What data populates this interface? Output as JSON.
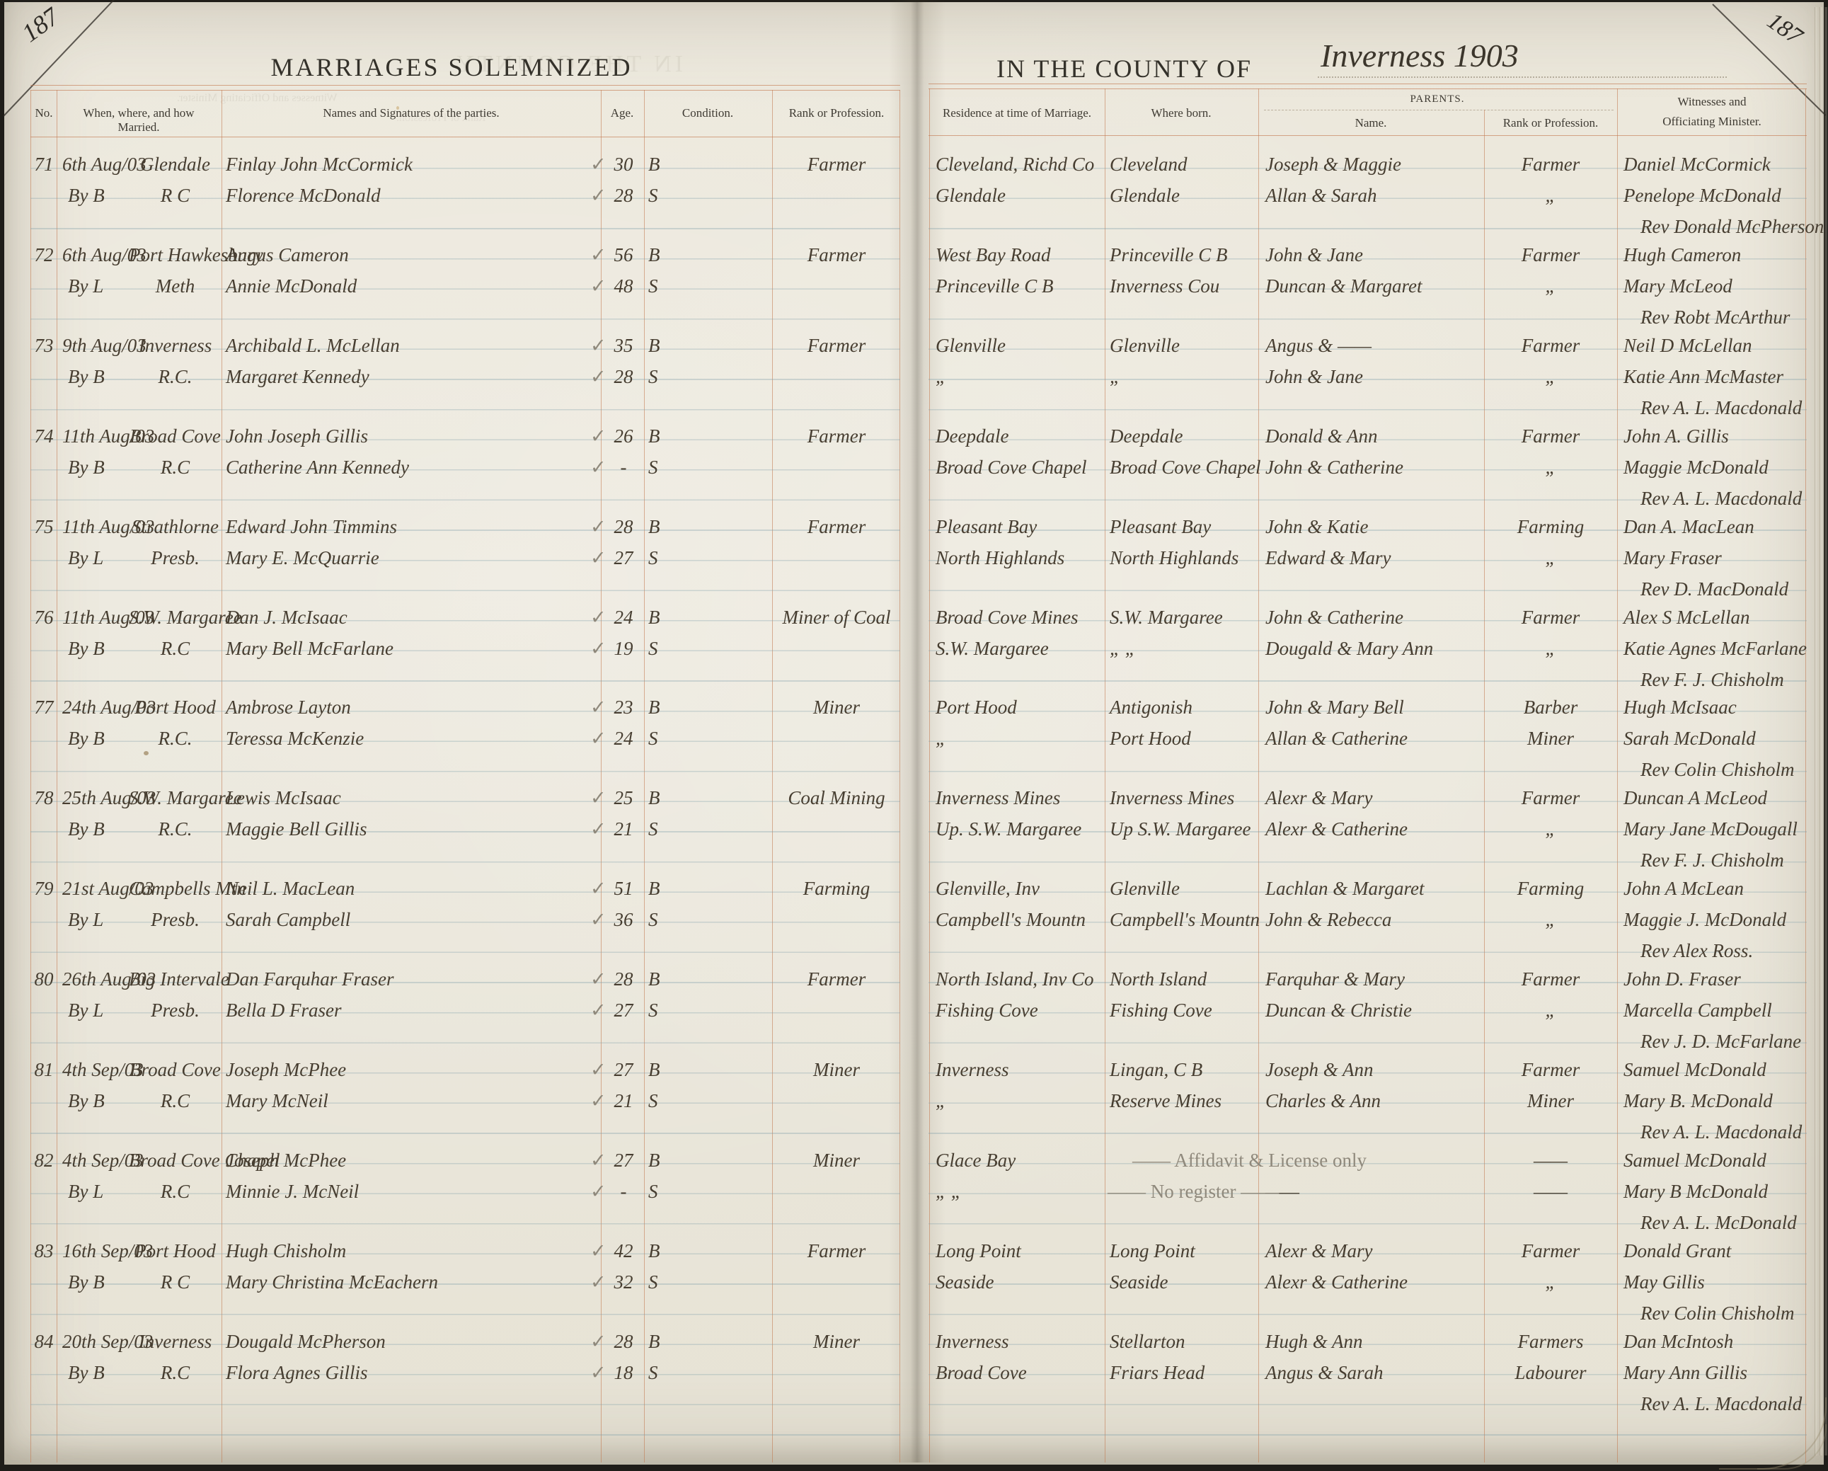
{
  "page": {
    "corner_number_left": "187",
    "corner_number_right": "187",
    "title_left": "MARRIAGES SOLEMNIZED",
    "title_right": "IN THE COUNTY OF",
    "county_handwritten": "Inverness 1903"
  },
  "glyphs": {
    "check": "✓"
  },
  "ghosts": {
    "ghost1": "IN THE COUNTY",
    "ghost2": "Witnesses and Officiating Minister.",
    "ghost3": "Rank or Profession."
  },
  "headers": {
    "no": "No.",
    "when": "When, where, and how Married.",
    "names": "Names and Signatures of the parties.",
    "age": "Age.",
    "condition": "Condition.",
    "rank": "Rank or Profession.",
    "residence": "Residence at time of Marriage.",
    "born": "Where born.",
    "parents": "PARENTS.",
    "parents_name": "Name.",
    "parents_rank": "Rank or Profession.",
    "witnesses_line1": "Witnesses and",
    "witnesses_line2": "Officiating Minister."
  },
  "entries": [
    {
      "no": "71",
      "date": "6th Aug/03",
      "by": "By B",
      "place": "Glendale",
      "denomination": "R C",
      "groom": {
        "name": "Finlay John McCormick",
        "age": "30",
        "condition": "B",
        "profession": "Farmer",
        "residence": "Cleveland, Richd Co",
        "born": "Cleveland",
        "parents": "Joseph & Maggie",
        "parents_profession": "Farmer"
      },
      "bride": {
        "name": "Florence McDonald",
        "age": "28",
        "condition": "S",
        "profession": "",
        "residence": "Glendale",
        "born": "Glendale",
        "parents": "Allan & Sarah",
        "parents_profession": "„"
      },
      "witness1": "Daniel McCormick",
      "witness2": "Penelope McDonald",
      "minister": "Rev Donald McPherson"
    },
    {
      "no": "72",
      "date": "6th Aug/03",
      "by": "By L",
      "place": "Port Hawkesbury",
      "denomination": "Meth",
      "groom": {
        "name": "Angus Cameron",
        "age": "56",
        "condition": "B",
        "profession": "Farmer",
        "residence": "West Bay Road",
        "born": "Princeville C B",
        "parents": "John & Jane",
        "parents_profession": "Farmer"
      },
      "bride": {
        "name": "Annie McDonald",
        "age": "48",
        "condition": "S",
        "profession": "",
        "residence": "Princeville C B",
        "born": "Inverness Cou",
        "parents": "Duncan & Margaret",
        "parents_profession": "„"
      },
      "witness1": "Hugh Cameron",
      "witness2": "Mary McLeod",
      "minister": "Rev Robt McArthur"
    },
    {
      "no": "73",
      "date": "9th Aug/03",
      "by": "By B",
      "place": "Inverness",
      "denomination": "R.C.",
      "groom": {
        "name": "Archibald L. McLellan",
        "age": "35",
        "condition": "B",
        "profession": "Farmer",
        "residence": "Glenville",
        "born": "Glenville",
        "parents": "Angus & ——",
        "parents_profession": "Farmer"
      },
      "bride": {
        "name": "Margaret Kennedy",
        "age": "28",
        "condition": "S",
        "profession": "",
        "residence": "„",
        "born": "„",
        "parents": "John & Jane",
        "parents_profession": "„"
      },
      "witness1": "Neil D McLellan",
      "witness2": "Katie Ann McMaster",
      "minister": "Rev A. L. Macdonald"
    },
    {
      "no": "74",
      "date": "11th Aug/03",
      "by": "By B",
      "place": "Broad Cove",
      "denomination": "R.C",
      "groom": {
        "name": "John Joseph Gillis",
        "age": "26",
        "condition": "B",
        "profession": "Farmer",
        "residence": "Deepdale",
        "born": "Deepdale",
        "parents": "Donald & Ann",
        "parents_profession": "Farmer"
      },
      "bride": {
        "name": "Catherine Ann Kennedy",
        "age": "-",
        "condition": "S",
        "profession": "",
        "residence": "Broad Cove Chapel",
        "born": "Broad Cove Chapel",
        "parents": "John & Catherine",
        "parents_profession": "„"
      },
      "witness1": "John A. Gillis",
      "witness2": "Maggie McDonald",
      "minister": "Rev A. L. Macdonald"
    },
    {
      "no": "75",
      "date": "11th Aug/03",
      "by": "By L",
      "place": "Strathlorne",
      "denomination": "Presb.",
      "groom": {
        "name": "Edward John Timmins",
        "age": "28",
        "condition": "B",
        "profession": "Farmer",
        "residence": "Pleasant Bay",
        "born": "Pleasant Bay",
        "parents": "John & Katie",
        "parents_profession": "Farming"
      },
      "bride": {
        "name": "Mary E. McQuarrie",
        "age": "27",
        "condition": "S",
        "profession": "",
        "residence": "North Highlands",
        "born": "North Highlands",
        "parents": "Edward & Mary",
        "parents_profession": "„"
      },
      "witness1": "Dan A. MacLean",
      "witness2": "Mary Fraser",
      "minister": "Rev D. MacDonald"
    },
    {
      "no": "76",
      "date": "11th Aug/03",
      "by": "By B",
      "place": "S.W. Margaree",
      "denomination": "R.C",
      "groom": {
        "name": "Dan J. McIsaac",
        "age": "24",
        "condition": "B",
        "profession": "Miner of Coal",
        "residence": "Broad Cove Mines",
        "born": "S.W. Margaree",
        "parents": "John & Catherine",
        "parents_profession": "Farmer"
      },
      "bride": {
        "name": "Mary Bell McFarlane",
        "age": "19",
        "condition": "S",
        "profession": "",
        "residence": "S.W. Margaree",
        "born": "„ „",
        "parents": "Dougald & Mary Ann",
        "parents_profession": "„"
      },
      "witness1": "Alex S McLellan",
      "witness2": "Katie Agnes McFarlane",
      "minister": "Rev F. J. Chisholm"
    },
    {
      "no": "77",
      "date": "24th Aug/03",
      "by": "By B",
      "place": "Port Hood",
      "denomination": "R.C.",
      "groom": {
        "name": "Ambrose Layton",
        "age": "23",
        "condition": "B",
        "profession": "Miner",
        "residence": "Port Hood",
        "born": "Antigonish",
        "parents": "John & Mary Bell",
        "parents_profession": "Barber"
      },
      "bride": {
        "name": "Teressa McKenzie",
        "age": "24",
        "condition": "S",
        "profession": "",
        "residence": "„",
        "born": "Port Hood",
        "parents": "Allan & Catherine",
        "parents_profession": "Miner"
      },
      "witness1": "Hugh McIsaac",
      "witness2": "Sarah McDonald",
      "minister": "Rev Colin Chisholm"
    },
    {
      "no": "78",
      "date": "25th Aug/03",
      "by": "By B",
      "place": "S.W. Margaree",
      "denomination": "R.C.",
      "groom": {
        "name": "Lewis McIsaac",
        "age": "25",
        "condition": "B",
        "profession": "Coal Mining",
        "residence": "Inverness Mines",
        "born": "Inverness Mines",
        "parents": "Alexr & Mary",
        "parents_profession": "Farmer"
      },
      "bride": {
        "name": "Maggie Bell Gillis",
        "age": "21",
        "condition": "S",
        "profession": "",
        "residence": "Up. S.W. Margaree",
        "born": "Up S.W. Margaree",
        "parents": "Alexr & Catherine",
        "parents_profession": "„"
      },
      "witness1": "Duncan A McLeod",
      "witness2": "Mary Jane McDougall",
      "minister": "Rev F. J. Chisholm"
    },
    {
      "no": "79",
      "date": "21st Aug/03",
      "by": "By L",
      "place": "Campbells Mtn",
      "denomination": "Presb.",
      "groom": {
        "name": "Neil L. MacLean",
        "age": "51",
        "condition": "B",
        "profession": "Farming",
        "residence": "Glenville, Inv",
        "born": "Glenville",
        "parents": "Lachlan & Margaret",
        "parents_profession": "Farming"
      },
      "bride": {
        "name": "Sarah Campbell",
        "age": "36",
        "condition": "S",
        "profession": "",
        "residence": "Campbell's Mountn",
        "born": "Campbell's Mountn",
        "parents": "John & Rebecca",
        "parents_profession": "„"
      },
      "witness1": "John A McLean",
      "witness2": "Maggie J. McDonald",
      "minister": "Rev Alex Ross."
    },
    {
      "no": "80",
      "date": "26th Aug/03",
      "by": "By L",
      "place": "Big Intervale",
      "denomination": "Presb.",
      "groom": {
        "name": "Dan Farquhar Fraser",
        "age": "28",
        "condition": "B",
        "profession": "Farmer",
        "residence": "North Island, Inv Co",
        "born": "North Island",
        "parents": "Farquhar & Mary",
        "parents_profession": "Farmer"
      },
      "bride": {
        "name": "Bella D Fraser",
        "age": "27",
        "condition": "S",
        "profession": "",
        "residence": "Fishing Cove",
        "born": "Fishing Cove",
        "parents": "Duncan & Christie",
        "parents_profession": "„"
      },
      "witness1": "John D. Fraser",
      "witness2": "Marcella Campbell",
      "minister": "Rev J. D. McFarlane"
    },
    {
      "no": "81",
      "date": "4th Sep/03",
      "by": "By B",
      "place": "Broad Cove",
      "denomination": "R.C",
      "groom": {
        "name": "Joseph McPhee",
        "age": "27",
        "condition": "B",
        "profession": "Miner",
        "residence": "Inverness",
        "born": "Lingan, C B",
        "parents": "Joseph & Ann",
        "parents_profession": "Farmer"
      },
      "bride": {
        "name": "Mary McNeil",
        "age": "21",
        "condition": "S",
        "profession": "",
        "residence": "„",
        "born": "Reserve Mines",
        "parents": "Charles & Ann",
        "parents_profession": "Miner"
      },
      "witness1": "Samuel McDonald",
      "witness2": "Mary B. McDonald",
      "minister": "Rev A. L. Macdonald"
    },
    {
      "no": "82",
      "date": "4th Sep/03",
      "by": "By L",
      "place": "Broad Cove Chapel",
      "denomination": "R.C",
      "groom": {
        "name": "Joseph McPhee",
        "age": "27",
        "condition": "B",
        "profession": "Miner",
        "residence": "Glace Bay",
        "born": "",
        "parents": "",
        "parents_profession": "——"
      },
      "bride": {
        "name": "Minnie J. McNeil",
        "age": "-",
        "condition": "S",
        "profession": "",
        "residence": "„ „",
        "born": "",
        "parents": "——",
        "parents_profession": "——"
      },
      "pencil_note1": "—— Affidavit & License only",
      "pencil_note2": "—— No register ——",
      "witness1": "Samuel McDonald",
      "witness2": "Mary B McDonald",
      "minister": "Rev A. L. McDonald"
    },
    {
      "no": "83",
      "date": "16th Sep/03",
      "by": "By B",
      "place": "Port Hood",
      "denomination": "R C",
      "groom": {
        "name": "Hugh Chisholm",
        "age": "42",
        "condition": "B",
        "profession": "Farmer",
        "residence": "Long Point",
        "born": "Long Point",
        "parents": "Alexr & Mary",
        "parents_profession": "Farmer"
      },
      "bride": {
        "name": "Mary Christina McEachern",
        "age": "32",
        "condition": "S",
        "profession": "",
        "residence": "Seaside",
        "born": "Seaside",
        "parents": "Alexr & Catherine",
        "parents_profession": "„"
      },
      "witness1": "Donald Grant",
      "witness2": "May Gillis",
      "minister": "Rev Colin Chisholm"
    },
    {
      "no": "84",
      "date": "20th Sep/03",
      "by": "By B",
      "place": "Inverness",
      "denomination": "R.C",
      "groom": {
        "name": "Dougald McPherson",
        "age": "28",
        "condition": "B",
        "profession": "Miner",
        "residence": "Inverness",
        "born": "Stellarton",
        "parents": "Hugh & Ann",
        "parents_profession": "Farmers"
      },
      "bride": {
        "name": "Flora Agnes Gillis",
        "age": "18",
        "condition": "S",
        "profession": "",
        "residence": "Broad Cove",
        "born": "Friars Head",
        "parents": "Angus & Sarah",
        "parents_profession": "Labourer"
      },
      "witness1": "Dan McIntosh",
      "witness2": "Mary Ann Gillis",
      "minister": "Rev A. L. Macdonald"
    }
  ]
}
